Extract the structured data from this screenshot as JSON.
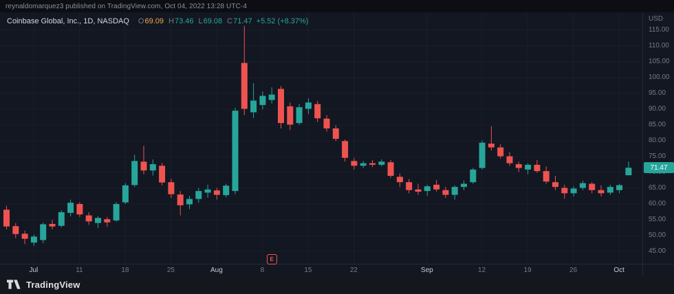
{
  "meta_bar": {
    "text": "reynaldomarquez3 published on TradingView.com, Oct 04, 2022 13:28 UTC-4"
  },
  "legend": {
    "title": "Coinbase Global, Inc., 1D, NASDAQ",
    "o_label": "O",
    "o": "69.09",
    "h_label": "H",
    "h": "73.46",
    "l_label": "L",
    "l": "69.08",
    "c_label": "C",
    "c": "71.47",
    "change": "+5.52 (+8.37%)"
  },
  "price_axis": {
    "currency": "USD",
    "labels": [
      "115.00",
      "110.00",
      "105.00",
      "100.00",
      "95.00",
      "90.00",
      "85.00",
      "80.00",
      "75.00",
      "70.00",
      "65.00",
      "60.00",
      "55.00",
      "50.00",
      "45.00"
    ],
    "last": "71.47"
  },
  "time_axis": {
    "labels": [
      {
        "t": "Jul",
        "i": 3,
        "major": true
      },
      {
        "t": "11",
        "i": 8,
        "major": false
      },
      {
        "t": "18",
        "i": 13,
        "major": false
      },
      {
        "t": "25",
        "i": 18,
        "major": false
      },
      {
        "t": "Aug",
        "i": 23,
        "major": true
      },
      {
        "t": "8",
        "i": 28,
        "major": false
      },
      {
        "t": "15",
        "i": 33,
        "major": false
      },
      {
        "t": "22",
        "i": 38,
        "major": false
      },
      {
        "t": "Sep",
        "i": 46,
        "major": true
      },
      {
        "t": "12",
        "i": 52,
        "major": false
      },
      {
        "t": "19",
        "i": 57,
        "major": false
      },
      {
        "t": "26",
        "i": 62,
        "major": false
      },
      {
        "t": "Oct",
        "i": 67,
        "major": true
      }
    ]
  },
  "markers": [
    {
      "type": "earnings",
      "label": "E",
      "i": 29
    }
  ],
  "footer": {
    "brand": "TradingView"
  },
  "colors": {
    "up": "#26a69a",
    "down": "#ef5350",
    "legend_open": "#f5a650",
    "grid": "rgba(140,150,170,0.06)",
    "axis_text": "#787b86",
    "badge_text": "#ffffff",
    "background": "#131722",
    "frame": "#0d0e13"
  },
  "chart_data": {
    "type": "candlestick",
    "title": "Coinbase Global, Inc., 1D, NASDAQ",
    "symbol": "Coinbase Global, Inc.",
    "exchange": "NASDAQ",
    "interval": "1D",
    "currency": "USD",
    "ylim": [
      41.1,
      120.6
    ],
    "columns": [
      "date",
      "open",
      "high",
      "low",
      "close"
    ],
    "candles": [
      [
        "Jun 28",
        58.2,
        59.4,
        52.0,
        52.9
      ],
      [
        "Jun 29",
        53.0,
        54.0,
        49.2,
        50.5
      ],
      [
        "Jun 30",
        50.6,
        51.6,
        47.3,
        49.0
      ],
      [
        "Jul 1",
        47.8,
        50.3,
        46.8,
        49.7
      ],
      [
        "Jul 5",
        48.6,
        54.1,
        47.6,
        53.6
      ],
      [
        "Jul 6",
        53.7,
        55.0,
        52.0,
        52.9
      ],
      [
        "Jul 7",
        53.1,
        58.0,
        52.6,
        57.4
      ],
      [
        "Jul 8",
        57.2,
        61.4,
        56.1,
        60.4
      ],
      [
        "Jul 11",
        60.0,
        60.6,
        55.9,
        56.7
      ],
      [
        "Jul 12",
        56.4,
        57.4,
        53.4,
        54.5
      ],
      [
        "Jul 13",
        54.0,
        56.2,
        52.4,
        55.6
      ],
      [
        "Jul 14",
        55.2,
        55.9,
        52.8,
        54.2
      ],
      [
        "Jul 15",
        54.8,
        60.6,
        54.4,
        60.0
      ],
      [
        "Jul 18",
        60.5,
        66.6,
        60.0,
        65.9
      ],
      [
        "Jul 19",
        66.0,
        75.6,
        65.4,
        73.6
      ],
      [
        "Jul 20",
        73.4,
        78.4,
        69.4,
        70.6
      ],
      [
        "Jul 21",
        70.6,
        74.1,
        69.0,
        72.6
      ],
      [
        "Jul 22",
        72.1,
        73.0,
        65.9,
        66.8
      ],
      [
        "Jul 25",
        66.9,
        68.0,
        61.9,
        63.1
      ],
      [
        "Jul 26",
        63.0,
        64.1,
        56.4,
        59.6
      ],
      [
        "Jul 27",
        59.9,
        62.6,
        58.4,
        61.6
      ],
      [
        "Jul 28",
        61.6,
        65.1,
        60.4,
        64.1
      ],
      [
        "Jul 29",
        63.6,
        66.1,
        62.0,
        64.6
      ],
      [
        "Aug 1",
        64.3,
        65.1,
        61.4,
        62.9
      ],
      [
        "Aug 2",
        62.8,
        66.4,
        62.1,
        65.8
      ],
      [
        "Aug 3",
        64.1,
        90.4,
        63.1,
        89.5
      ],
      [
        "Aug 4",
        104.6,
        116.3,
        88.1,
        90.1
      ],
      [
        "Aug 5",
        89.0,
        98.2,
        87.2,
        92.7
      ],
      [
        "Aug 8",
        91.3,
        95.6,
        89.9,
        94.2
      ],
      [
        "Aug 9",
        92.9,
        96.9,
        91.8,
        94.6
      ],
      [
        "Aug 10",
        96.4,
        97.3,
        83.9,
        85.6
      ],
      [
        "Aug 11",
        90.9,
        92.1,
        83.4,
        85.1
      ],
      [
        "Aug 12",
        85.6,
        91.6,
        85.0,
        90.6
      ],
      [
        "Aug 15",
        90.1,
        93.4,
        88.4,
        92.1
      ],
      [
        "Aug 16",
        91.6,
        92.6,
        85.9,
        87.1
      ],
      [
        "Aug 17",
        87.0,
        88.1,
        82.9,
        83.9
      ],
      [
        "Aug 18",
        83.9,
        84.9,
        79.9,
        80.6
      ],
      [
        "Aug 19",
        79.9,
        80.4,
        73.4,
        74.6
      ],
      [
        "Aug 22",
        73.6,
        74.6,
        70.9,
        72.1
      ],
      [
        "Aug 23",
        72.1,
        73.6,
        71.4,
        72.9
      ],
      [
        "Aug 24",
        72.9,
        73.9,
        71.7,
        72.4
      ],
      [
        "Aug 25",
        72.4,
        74.1,
        71.9,
        73.4
      ],
      [
        "Aug 26",
        73.2,
        73.9,
        68.3,
        68.9
      ],
      [
        "Aug 29",
        68.6,
        69.6,
        65.4,
        66.9
      ],
      [
        "Aug 30",
        66.9,
        67.9,
        63.4,
        64.4
      ],
      [
        "Aug 31",
        64.6,
        66.4,
        62.9,
        63.9
      ],
      [
        "Sep 1",
        64.1,
        66.1,
        62.6,
        65.6
      ],
      [
        "Sep 2",
        66.1,
        67.6,
        63.9,
        64.6
      ],
      [
        "Sep 6",
        64.4,
        65.4,
        61.9,
        62.9
      ],
      [
        "Sep 7",
        62.9,
        65.9,
        61.4,
        65.4
      ],
      [
        "Sep 8",
        65.4,
        67.4,
        64.4,
        66.4
      ],
      [
        "Sep 9",
        66.9,
        71.4,
        66.4,
        70.9
      ],
      [
        "Sep 12",
        71.4,
        80.1,
        70.9,
        79.4
      ],
      [
        "Sep 13",
        79.1,
        84.6,
        76.9,
        77.9
      ],
      [
        "Sep 14",
        77.9,
        78.9,
        74.4,
        75.1
      ],
      [
        "Sep 15",
        75.1,
        76.4,
        72.1,
        72.9
      ],
      [
        "Sep 16",
        72.6,
        73.4,
        70.1,
        71.4
      ],
      [
        "Sep 19",
        70.9,
        72.9,
        69.4,
        72.4
      ],
      [
        "Sep 20",
        72.4,
        73.9,
        69.9,
        70.4
      ],
      [
        "Sep 21",
        70.4,
        71.9,
        66.4,
        67.1
      ],
      [
        "Sep 22",
        66.9,
        68.9,
        64.4,
        65.4
      ],
      [
        "Sep 23",
        65.1,
        66.1,
        61.7,
        63.4
      ],
      [
        "Sep 26",
        63.4,
        65.6,
        62.4,
        64.9
      ],
      [
        "Sep 27",
        65.1,
        67.4,
        64.4,
        66.6
      ],
      [
        "Sep 28",
        66.4,
        66.9,
        63.4,
        64.4
      ],
      [
        "Sep 29",
        64.4,
        65.9,
        62.4,
        63.4
      ],
      [
        "Sep 30",
        63.6,
        66.1,
        62.9,
        65.4
      ],
      [
        "Oct 3",
        64.4,
        66.4,
        63.4,
        65.95
      ],
      [
        "Oct 4",
        69.09,
        73.46,
        69.08,
        71.47
      ]
    ]
  }
}
